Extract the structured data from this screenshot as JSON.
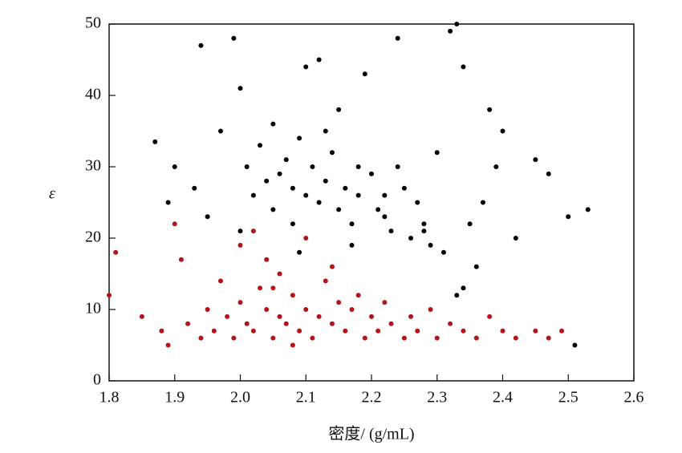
{
  "chart_data": {
    "type": "scatter",
    "x_label": "密度/ (g/mL)",
    "y_label": "ε",
    "xlim": [
      1.8,
      2.6
    ],
    "ylim": [
      0,
      50
    ],
    "xticks": [
      1.8,
      1.9,
      {
        "value": 2,
        "label": "2.0"
      },
      2.1,
      2.2,
      2.3,
      2.4,
      2.5,
      2.6
    ],
    "yticks": [
      0,
      10,
      20,
      30,
      40,
      50
    ],
    "series": [
      {
        "color": "#000000",
        "x": [
          1.87,
          1.89,
          1.9,
          1.93,
          1.94,
          1.95,
          1.97,
          1.99,
          2.0,
          2.01,
          2.02,
          2.03,
          2.04,
          2.05,
          2.05,
          2.06,
          2.07,
          2.08,
          2.08,
          2.09,
          2.1,
          2.1,
          2.11,
          2.12,
          2.12,
          2.13,
          2.14,
          2.15,
          2.15,
          2.16,
          2.17,
          2.18,
          2.18,
          2.19,
          2.2,
          2.21,
          2.22,
          2.23,
          2.24,
          2.25,
          2.26,
          2.27,
          2.28,
          2.29,
          2.3,
          2.31,
          2.32,
          2.33,
          2.34,
          2.35,
          2.36,
          2.37,
          2.38,
          2.39,
          2.4,
          2.42,
          2.45,
          2.47,
          2.5,
          2.51,
          2.53,
          2.0,
          2.13,
          2.24,
          2.33,
          2.34,
          2.09,
          2.17,
          2.22,
          2.28
        ],
        "values": [
          33.5,
          25,
          30,
          27,
          47,
          23,
          35,
          48,
          41,
          30,
          26,
          33,
          28,
          36,
          24,
          29,
          31,
          27,
          22,
          34,
          44,
          26,
          30,
          45,
          25,
          28,
          32,
          24,
          38,
          27,
          22,
          30,
          26,
          43,
          29,
          24,
          23,
          21,
          48,
          27,
          20,
          25,
          22,
          19,
          32,
          18,
          49,
          12,
          44,
          22,
          16,
          25,
          38,
          30,
          35,
          20,
          31,
          29,
          23,
          5,
          24,
          21,
          35,
          30,
          50,
          13,
          18,
          19,
          26,
          21
        ]
      },
      {
        "color": "#b5121b",
        "x": [
          1.8,
          1.81,
          1.85,
          1.88,
          1.89,
          1.9,
          1.92,
          1.94,
          1.95,
          1.96,
          1.97,
          1.98,
          1.99,
          2.0,
          2.0,
          2.01,
          2.02,
          2.03,
          2.04,
          2.04,
          2.05,
          2.06,
          2.06,
          2.07,
          2.08,
          2.09,
          2.1,
          2.1,
          2.11,
          2.12,
          2.13,
          2.14,
          2.15,
          2.16,
          2.17,
          2.18,
          2.19,
          2.2,
          2.21,
          2.22,
          2.23,
          2.25,
          2.27,
          2.29,
          2.3,
          2.32,
          2.34,
          2.36,
          2.38,
          2.4,
          2.42,
          2.45,
          2.47,
          2.49,
          1.91,
          2.02,
          2.08,
          2.14,
          2.05,
          2.26
        ],
        "values": [
          12,
          18,
          9,
          7,
          5,
          22,
          8,
          6,
          10,
          7,
          14,
          9,
          6,
          11,
          19,
          8,
          7,
          13,
          10,
          17,
          6,
          9,
          15,
          8,
          12,
          7,
          20,
          10,
          6,
          9,
          14,
          8,
          11,
          7,
          10,
          12,
          6,
          9,
          7,
          11,
          8,
          6,
          7,
          10,
          6,
          8,
          7,
          6,
          9,
          7,
          6,
          7,
          6,
          7,
          17,
          21,
          5,
          16,
          13,
          9
        ]
      }
    ]
  }
}
